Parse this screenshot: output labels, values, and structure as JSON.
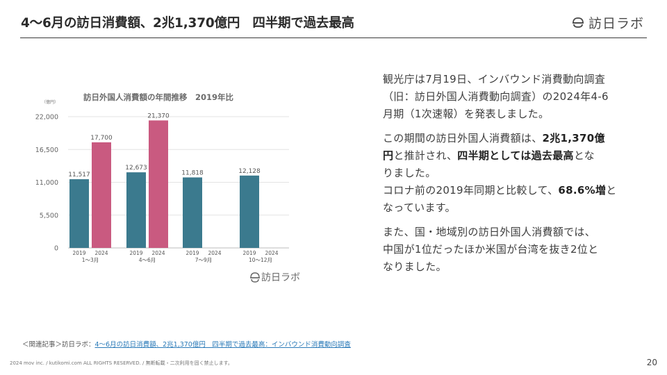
{
  "header": {
    "title": "4〜6月の訪日消費額、2兆1,370億円　四半期で過去最高",
    "brand": "訪日ラボ",
    "accent_color": "#3a3a3a"
  },
  "chart_data": {
    "type": "bar",
    "title": "訪日外国人消費額の年間推移　2019年比",
    "ylabel": "（億円）",
    "xlabel": "",
    "ylim": [
      0,
      22000
    ],
    "yticks": [
      "22,000",
      "16,500",
      "11,000",
      "5,500",
      "0"
    ],
    "ytick_values": [
      22000,
      16500,
      11000,
      5500,
      0
    ],
    "grid": true,
    "categories": [
      "1〜3月",
      "4〜6月",
      "7〜9月",
      "10〜12月"
    ],
    "year_labels": [
      "2019",
      "2024"
    ],
    "series": [
      {
        "name": "2019",
        "color": "#3b7a8e",
        "values": [
          11517,
          12673,
          11818,
          12128
        ],
        "labels": [
          "11,517",
          "12,673",
          "11,818",
          "12,128"
        ]
      },
      {
        "name": "2024",
        "color": "#c95a80",
        "values": [
          17700,
          21370,
          null,
          null
        ],
        "labels": [
          "17,700",
          "21,370",
          "",
          ""
        ]
      }
    ],
    "watermark": "訪日ラボ"
  },
  "body": {
    "p1": [
      "観光庁は7月19日、インバウンド消費動向調査",
      "（旧：訪日外国人消費動向調査）の2024年4-6",
      "月期（1次速報）を発表しました。"
    ],
    "p2_l1_pre": "この期間の訪日外国人消費額は、",
    "p2_l1_bold": "2兆1,370億",
    "p2_l2_bold1": "円",
    "p2_l2_mid": "と推計され、",
    "p2_l2_bold2": "四半期としては過去最高",
    "p2_l2_post": "とな",
    "p2_l3": "りました。",
    "p2_l4_pre": "コロナ前の2019年同期と比較して、",
    "p2_l4_bold": "68.6%増",
    "p2_l4_post": "と",
    "p2_l5": "なっています。",
    "p3": [
      "また、国・地域別の訪日外国人消費額では、",
      "中国が1位だったほか米国が台湾を抜き2位と",
      "なりました。"
    ]
  },
  "footer": {
    "related_prefix": "＜関連記事＞訪日ラボ：",
    "related_link": "4〜6月の訪日消費額、2兆1,370億円　四半期で過去最高：インバウンド消費動向調査",
    "copyright": "2024 mov inc. / kutikomi.com ALL RIGHTS RESERVED. / 無断転載・二次利用を固く禁止します。",
    "page_number": "20"
  }
}
